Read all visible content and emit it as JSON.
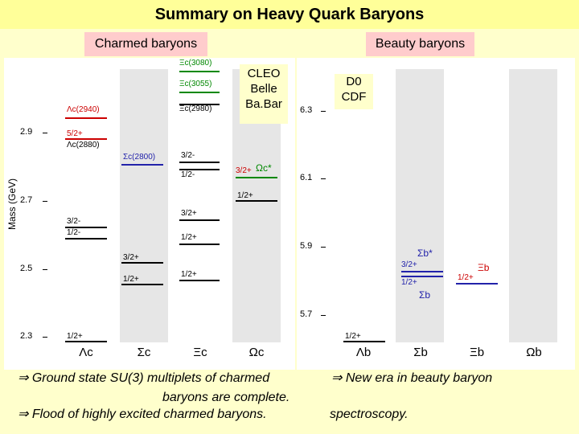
{
  "title": "Summary on Heavy Quark Baryons",
  "headers": {
    "charmed": "Charmed baryons",
    "beauty": "Beauty baryons"
  },
  "charm_plot": {
    "ylabel": "Mass (GeV)",
    "ticks": [
      "2.9",
      "2.7",
      "2.5",
      "2.3"
    ],
    "experiments": [
      "CLEO",
      "Belle",
      "Ba.Bar"
    ],
    "xlabels": [
      "Λc",
      "Σc",
      "Ξc",
      "Ωc"
    ],
    "labels": {
      "xi3080": "Ξc(3080)",
      "xi3055": "Ξc(3055)",
      "xi2980": "Ξc(2980)",
      "lam2940": "Λc(2940)",
      "lam2880_jp": "5/2+",
      "lam2880": "Λc(2880)",
      "sig2800": "Σc(2800)",
      "xi_32m": "3/2-",
      "xi_12m": "1/2-",
      "omega_star_jp": "3/2+",
      "omega_star": "Ωc*",
      "omega_12p": "1/2+",
      "lam_32m": "3/2-",
      "lam_12m": "1/2-",
      "xi_32p": "3/2+",
      "xi_12p": "1/2+",
      "sig_32p": "3/2+",
      "sig_12p": "1/2+",
      "xi_gs": "1/2+",
      "lam_gs": "1/2+"
    }
  },
  "beauty_plot": {
    "ticks": [
      "6.3",
      "6.1",
      "5.9",
      "5.7"
    ],
    "experiments": [
      "D0",
      "CDF"
    ],
    "xlabels": [
      "Λb",
      "Σb",
      "Ξb",
      "Ωb"
    ],
    "labels": {
      "sigb_star": "Σb*",
      "sigb_32p": "3/2+",
      "sigb_12p": "1/2+",
      "sigb": "Σb",
      "xib": "Ξb",
      "xib_12p": "1/2+",
      "lamb_12p": "1/2+"
    }
  },
  "notes": {
    "left": [
      "Ground state SU(3) multiplets of charmed",
      "baryons are complete.",
      "Flood of highly excited charmed baryons."
    ],
    "right": [
      "New era in beauty baryon",
      "spectroscopy."
    ],
    "arrow": "⇒"
  },
  "colors": {
    "red": "#cc0000",
    "blue": "#2222aa",
    "green": "#008800",
    "grey": "#e6e6e6"
  }
}
